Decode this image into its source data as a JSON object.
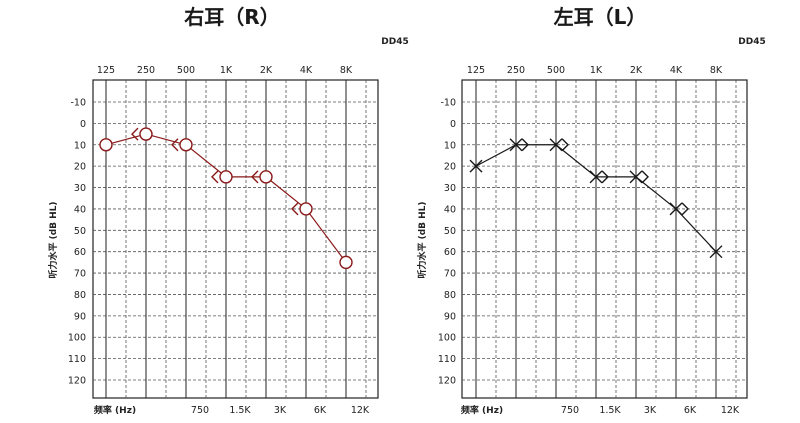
{
  "chart_data": [
    {
      "type": "line",
      "title": "右耳（R）",
      "model": "DD45",
      "ylabel": "听力水平 (dB HL)",
      "xlabel": "频率 (Hz)",
      "x_top_ticks": [
        "125",
        "250",
        "500",
        "1K",
        "2K",
        "4K",
        "8K"
      ],
      "x_bottom_ticks": [
        "750",
        "1.5K",
        "3K",
        "6K",
        "12K"
      ],
      "y_ticks": [
        "-10",
        "0",
        "10",
        "20",
        "30",
        "40",
        "50",
        "60",
        "70",
        "80",
        "90",
        "100",
        "110",
        "120"
      ],
      "ylim": [
        -10,
        120
      ],
      "y_inverted": true,
      "series": [
        {
          "marker": "circle",
          "color": "#8b1a1a",
          "x": [
            "125",
            "250",
            "500",
            "1K",
            "2K",
            "4K",
            "8K"
          ],
          "values": [
            10,
            5,
            10,
            25,
            25,
            40,
            65
          ]
        },
        {
          "marker": "bone-right",
          "color": "#8b1a1a",
          "x": [
            "250",
            "500",
            "1K",
            "2K",
            "4K"
          ],
          "values": [
            5,
            10,
            25,
            25,
            40
          ]
        }
      ]
    },
    {
      "type": "line",
      "title": "左耳（L）",
      "model": "DD45",
      "ylabel": "听力水平 (dB HL)",
      "xlabel": "频率 (Hz)",
      "x_top_ticks": [
        "125",
        "250",
        "500",
        "1K",
        "2K",
        "4K",
        "8K"
      ],
      "x_bottom_ticks": [
        "750",
        "1.5K",
        "3K",
        "6K",
        "12K"
      ],
      "y_ticks": [
        "-10",
        "0",
        "10",
        "20",
        "30",
        "40",
        "50",
        "60",
        "70",
        "80",
        "90",
        "100",
        "110",
        "120"
      ],
      "ylim": [
        -10,
        120
      ],
      "y_inverted": true,
      "series": [
        {
          "marker": "cross",
          "color": "#1a1a1a",
          "x": [
            "125",
            "250",
            "500",
            "1K",
            "2K",
            "4K",
            "8K"
          ],
          "values": [
            20,
            10,
            10,
            25,
            25,
            40,
            60
          ]
        },
        {
          "marker": "bone-left",
          "color": "#1a1a1a",
          "x": [
            "250",
            "500",
            "1K",
            "2K",
            "4K"
          ],
          "values": [
            10,
            10,
            25,
            25,
            40
          ]
        }
      ]
    }
  ]
}
